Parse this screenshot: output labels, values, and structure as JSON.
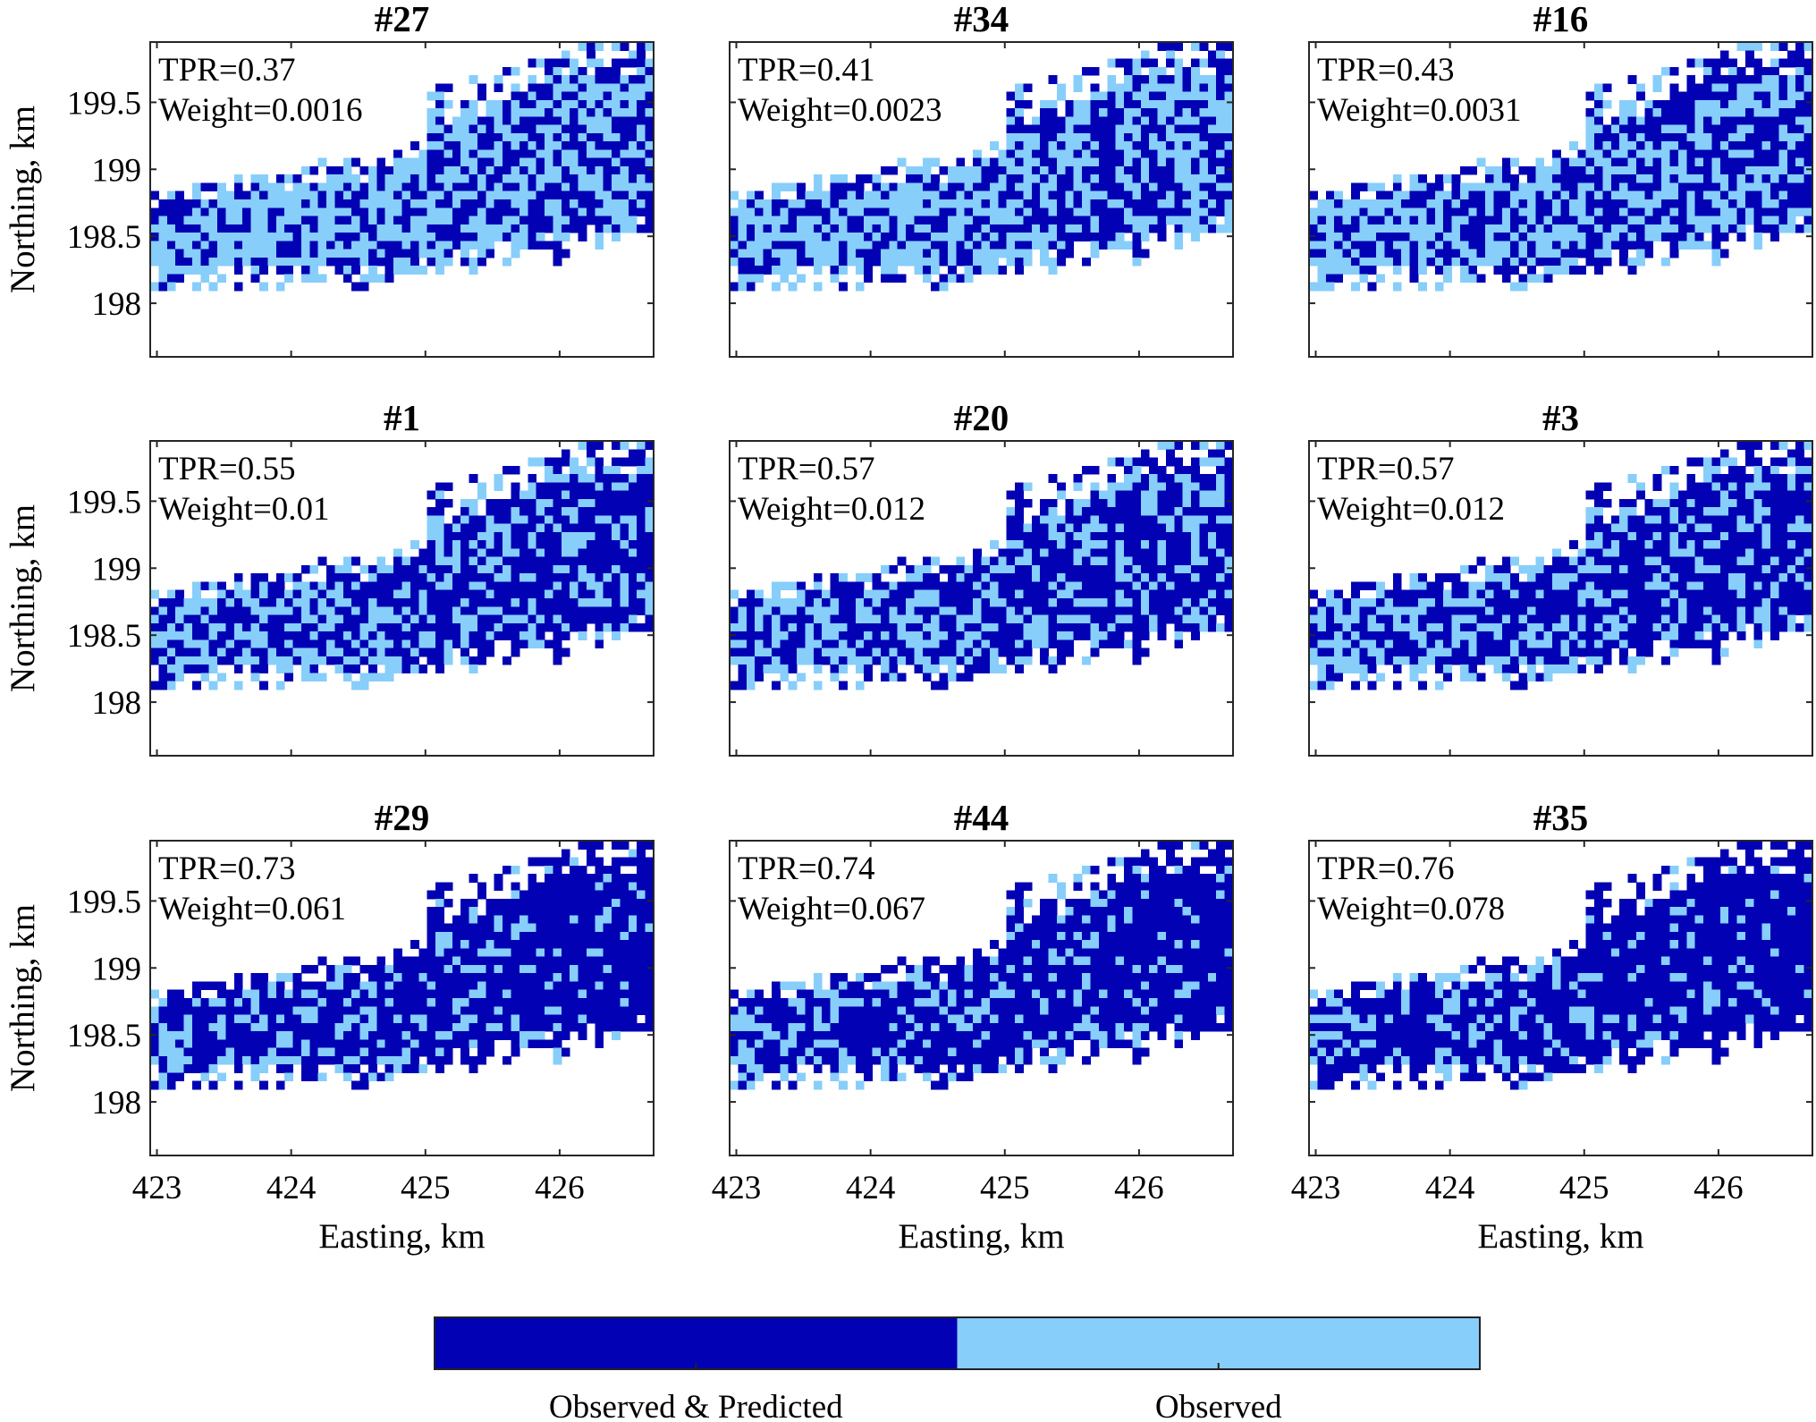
{
  "figure": {
    "colorbar": {
      "labels": [
        "Observed & Predicted",
        "Observed"
      ],
      "colors": [
        "#0202b4",
        "#87cefa"
      ]
    }
  },
  "chart_data": {
    "type": "heatmap",
    "layout": {
      "rows": 3,
      "cols": 3
    },
    "xlabel": "Easting, km",
    "ylabel": "Northing, km",
    "xlim": [
      422.95,
      426.7
    ],
    "ylim": [
      197.6,
      199.95
    ],
    "xticks": [
      423,
      424,
      425,
      426
    ],
    "yticks": [
      198,
      198.5,
      199,
      199.5
    ],
    "categories": [
      "Observed & Predicted",
      "Observed"
    ],
    "colors": {
      "Observed & Predicted": "#0202b4",
      "Observed": "#87cefa"
    },
    "panels": [
      {
        "title": "#27",
        "tpr_text": "TPR=0.37",
        "weight_text": "Weight=0.0016",
        "tpr": 0.37,
        "weight": 0.0016
      },
      {
        "title": "#34",
        "tpr_text": "TPR=0.41",
        "weight_text": "Weight=0.0023",
        "tpr": 0.41,
        "weight": 0.0023
      },
      {
        "title": "#16",
        "tpr_text": "TPR=0.43",
        "weight_text": "Weight=0.0031",
        "tpr": 0.43,
        "weight": 0.0031
      },
      {
        "title": "#1",
        "tpr_text": "TPR=0.55",
        "weight_text": "Weight=0.01",
        "tpr": 0.55,
        "weight": 0.01
      },
      {
        "title": "#20",
        "tpr_text": "TPR=0.57",
        "weight_text": "Weight=0.012",
        "tpr": 0.57,
        "weight": 0.012
      },
      {
        "title": "#3",
        "tpr_text": "TPR=0.57",
        "weight_text": "Weight=0.012",
        "tpr": 0.57,
        "weight": 0.012
      },
      {
        "title": "#29",
        "tpr_text": "TPR=0.73",
        "weight_text": "Weight=0.061",
        "tpr": 0.73,
        "weight": 0.061
      },
      {
        "title": "#44",
        "tpr_text": "TPR=0.74",
        "weight_text": "Weight=0.067",
        "tpr": 0.74,
        "weight": 0.067
      },
      {
        "title": "#35",
        "tpr_text": "TPR=0.76",
        "weight_text": "Weight=0.078",
        "tpr": 0.76,
        "weight": 0.078
      }
    ]
  }
}
